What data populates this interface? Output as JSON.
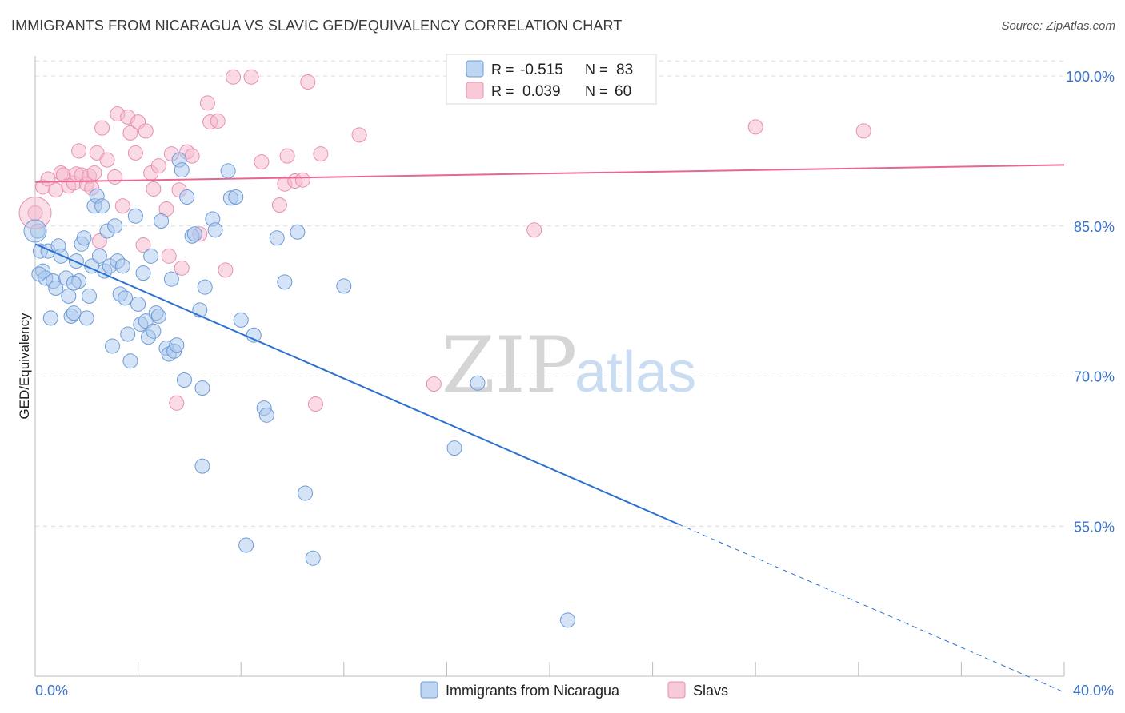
{
  "title": "IMMIGRANTS FROM NICARAGUA VS SLAVIC GED/EQUIVALENCY CORRELATION CHART",
  "source": "Source: ZipAtlas.com",
  "watermark": {
    "zip": "ZIP",
    "atlas": "atlas"
  },
  "colors": {
    "blue_fill": "#a9c8ee",
    "blue_stroke": "#6d9bd6",
    "blue_line": "#2b72d0",
    "pink_fill": "#f6b8cb",
    "pink_stroke": "#e98fad",
    "pink_line": "#e8668f",
    "tick_text": "#3b74c7",
    "grid": "#dcdcdc"
  },
  "legend": {
    "r_label": "R =",
    "n_label": "N =",
    "series": [
      {
        "r": "-0.515",
        "n": "83"
      },
      {
        "r": "0.039",
        "n": "60"
      }
    ]
  },
  "chart_data": {
    "type": "scatter",
    "xlabel": "",
    "ylabel": "GED/Equivalency",
    "xlim": [
      0,
      40
    ],
    "ylim": [
      40,
      102
    ],
    "x_tick_labels": [
      "0.0%",
      "40.0%"
    ],
    "y_ticks": [
      55,
      70,
      85,
      100
    ],
    "y_tick_labels": [
      "55.0%",
      "70.0%",
      "85.0%",
      "100.0%"
    ],
    "grid": true,
    "legend_position": "top-center",
    "series": [
      {
        "name": "Immigrants from Nicaragua",
        "color": "#6d9bd6",
        "trend": {
          "x0": 0,
          "y0": 83.2,
          "x1": 25.0,
          "y1": 55.2,
          "dash_to_x": 40,
          "dash_to_y": 38.4
        },
        "points": [
          [
            0.1,
            84.5
          ],
          [
            0.2,
            82.5
          ],
          [
            0.3,
            80.5
          ],
          [
            0.4,
            79.8
          ],
          [
            0.5,
            82.5
          ],
          [
            0.6,
            75.8
          ],
          [
            0.7,
            79.5
          ],
          [
            0.8,
            78.8
          ],
          [
            0.9,
            83.0
          ],
          [
            1.0,
            82.0
          ],
          [
            1.2,
            79.8
          ],
          [
            1.3,
            78.0
          ],
          [
            1.4,
            76.0
          ],
          [
            1.5,
            76.3
          ],
          [
            1.6,
            81.5
          ],
          [
            1.7,
            79.5
          ],
          [
            1.8,
            83.2
          ],
          [
            1.9,
            83.8
          ],
          [
            2.0,
            75.8
          ],
          [
            2.1,
            78.0
          ],
          [
            2.2,
            81.0
          ],
          [
            2.3,
            87.0
          ],
          [
            2.4,
            88.0
          ],
          [
            2.5,
            82.0
          ],
          [
            2.6,
            87.0
          ],
          [
            2.7,
            80.5
          ],
          [
            2.8,
            84.5
          ],
          [
            2.9,
            81.0
          ],
          [
            3.0,
            73.0
          ],
          [
            3.1,
            85.0
          ],
          [
            3.2,
            81.5
          ],
          [
            3.3,
            78.2
          ],
          [
            3.4,
            81.0
          ],
          [
            3.5,
            77.8
          ],
          [
            3.6,
            74.2
          ],
          [
            3.7,
            71.5
          ],
          [
            3.9,
            86.0
          ],
          [
            4.0,
            77.2
          ],
          [
            4.1,
            75.2
          ],
          [
            4.2,
            80.3
          ],
          [
            4.3,
            75.5
          ],
          [
            4.4,
            73.9
          ],
          [
            4.5,
            82.0
          ],
          [
            4.6,
            74.5
          ],
          [
            4.7,
            76.3
          ],
          [
            4.8,
            76.0
          ],
          [
            4.9,
            85.5
          ],
          [
            5.1,
            72.8
          ],
          [
            5.2,
            72.2
          ],
          [
            5.3,
            79.7
          ],
          [
            5.4,
            72.5
          ],
          [
            5.5,
            73.1
          ],
          [
            5.6,
            91.6
          ],
          [
            5.7,
            90.6
          ],
          [
            5.8,
            69.6
          ],
          [
            5.9,
            87.9
          ],
          [
            6.1,
            84.0
          ],
          [
            6.2,
            84.2
          ],
          [
            6.4,
            76.6
          ],
          [
            6.5,
            68.8
          ],
          [
            6.6,
            78.9
          ],
          [
            6.9,
            85.7
          ],
          [
            7.0,
            84.6
          ],
          [
            7.5,
            90.5
          ],
          [
            7.6,
            87.8
          ],
          [
            7.8,
            87.9
          ],
          [
            8.0,
            75.6
          ],
          [
            8.5,
            74.1
          ],
          [
            8.9,
            66.8
          ],
          [
            9.0,
            66.1
          ],
          [
            9.4,
            83.8
          ],
          [
            9.7,
            79.4
          ],
          [
            10.2,
            84.4
          ],
          [
            10.5,
            58.3
          ],
          [
            10.8,
            51.8
          ],
          [
            12.0,
            79.0
          ],
          [
            16.3,
            62.8
          ],
          [
            17.2,
            69.3
          ],
          [
            6.5,
            61.0
          ],
          [
            8.2,
            53.1
          ],
          [
            20.7,
            45.6
          ],
          [
            0.15,
            80.2
          ],
          [
            1.5,
            79.3
          ]
        ]
      },
      {
        "name": "Slavs",
        "color": "#e98fad",
        "trend": {
          "x0": 0,
          "y0": 89.4,
          "x1": 40,
          "y1": 91.1
        },
        "points": [
          [
            0.0,
            86.3
          ],
          [
            0.3,
            88.9
          ],
          [
            0.5,
            89.7
          ],
          [
            0.8,
            88.6
          ],
          [
            1.0,
            90.3
          ],
          [
            1.1,
            90.1
          ],
          [
            1.3,
            89.0
          ],
          [
            1.5,
            89.3
          ],
          [
            1.6,
            90.2
          ],
          [
            1.7,
            92.5
          ],
          [
            1.8,
            90.1
          ],
          [
            2.0,
            89.2
          ],
          [
            2.1,
            90.0
          ],
          [
            2.2,
            88.8
          ],
          [
            2.3,
            90.3
          ],
          [
            2.4,
            92.3
          ],
          [
            2.5,
            83.5
          ],
          [
            2.6,
            94.8
          ],
          [
            2.8,
            91.6
          ],
          [
            3.1,
            89.9
          ],
          [
            3.2,
            96.2
          ],
          [
            3.4,
            87.0
          ],
          [
            3.6,
            95.9
          ],
          [
            3.7,
            94.3
          ],
          [
            3.9,
            92.3
          ],
          [
            4.0,
            95.4
          ],
          [
            4.2,
            83.1
          ],
          [
            4.3,
            94.5
          ],
          [
            4.5,
            90.3
          ],
          [
            4.6,
            88.7
          ],
          [
            4.8,
            91.0
          ],
          [
            5.1,
            86.7
          ],
          [
            5.2,
            82.0
          ],
          [
            5.3,
            92.2
          ],
          [
            5.5,
            67.3
          ],
          [
            5.6,
            88.6
          ],
          [
            5.7,
            80.8
          ],
          [
            5.9,
            92.4
          ],
          [
            6.1,
            92.0
          ],
          [
            6.4,
            84.2
          ],
          [
            6.7,
            97.3
          ],
          [
            6.8,
            95.4
          ],
          [
            7.1,
            95.5
          ],
          [
            7.4,
            80.6
          ],
          [
            7.7,
            99.9
          ],
          [
            8.4,
            99.9
          ],
          [
            8.8,
            91.4
          ],
          [
            9.5,
            87.1
          ],
          [
            9.8,
            92.0
          ],
          [
            9.7,
            89.2
          ],
          [
            10.1,
            89.5
          ],
          [
            10.4,
            89.6
          ],
          [
            10.6,
            99.4
          ],
          [
            10.9,
            67.2
          ],
          [
            11.1,
            92.2
          ],
          [
            12.6,
            94.1
          ],
          [
            15.5,
            69.2
          ],
          [
            19.4,
            84.6
          ],
          [
            28.0,
            94.9
          ],
          [
            32.2,
            94.5
          ]
        ]
      }
    ]
  }
}
